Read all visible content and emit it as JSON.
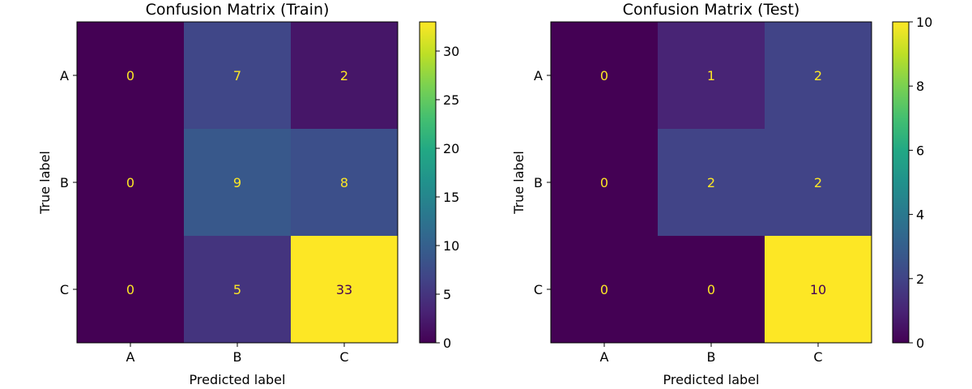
{
  "chart_data": [
    {
      "type": "heatmap",
      "title": "Confusion Matrix (Train)",
      "xlabel": "Predicted label",
      "ylabel": "True label",
      "x_categories": [
        "A",
        "B",
        "C"
      ],
      "y_categories": [
        "A",
        "B",
        "C"
      ],
      "values": [
        [
          0,
          7,
          2
        ],
        [
          0,
          9,
          8
        ],
        [
          0,
          5,
          33
        ]
      ],
      "colorscale": "viridis",
      "colorbar": {
        "range": [
          0,
          33
        ],
        "ticks": [
          0,
          5,
          10,
          15,
          20,
          25,
          30
        ]
      },
      "cell_text_colors": {
        "low": "#fde725",
        "high": "#440154"
      },
      "grid": false
    },
    {
      "type": "heatmap",
      "title": "Confusion Matrix (Test)",
      "xlabel": "Predicted label",
      "ylabel": "True label",
      "x_categories": [
        "A",
        "B",
        "C"
      ],
      "y_categories": [
        "A",
        "B",
        "C"
      ],
      "values": [
        [
          0,
          1,
          2
        ],
        [
          0,
          2,
          2
        ],
        [
          0,
          0,
          10
        ]
      ],
      "colorscale": "viridis",
      "colorbar": {
        "range": [
          0,
          10
        ],
        "ticks": [
          0,
          2,
          4,
          6,
          8,
          10
        ]
      },
      "cell_text_colors": {
        "low": "#fde725",
        "high": "#440154"
      },
      "grid": false
    }
  ]
}
